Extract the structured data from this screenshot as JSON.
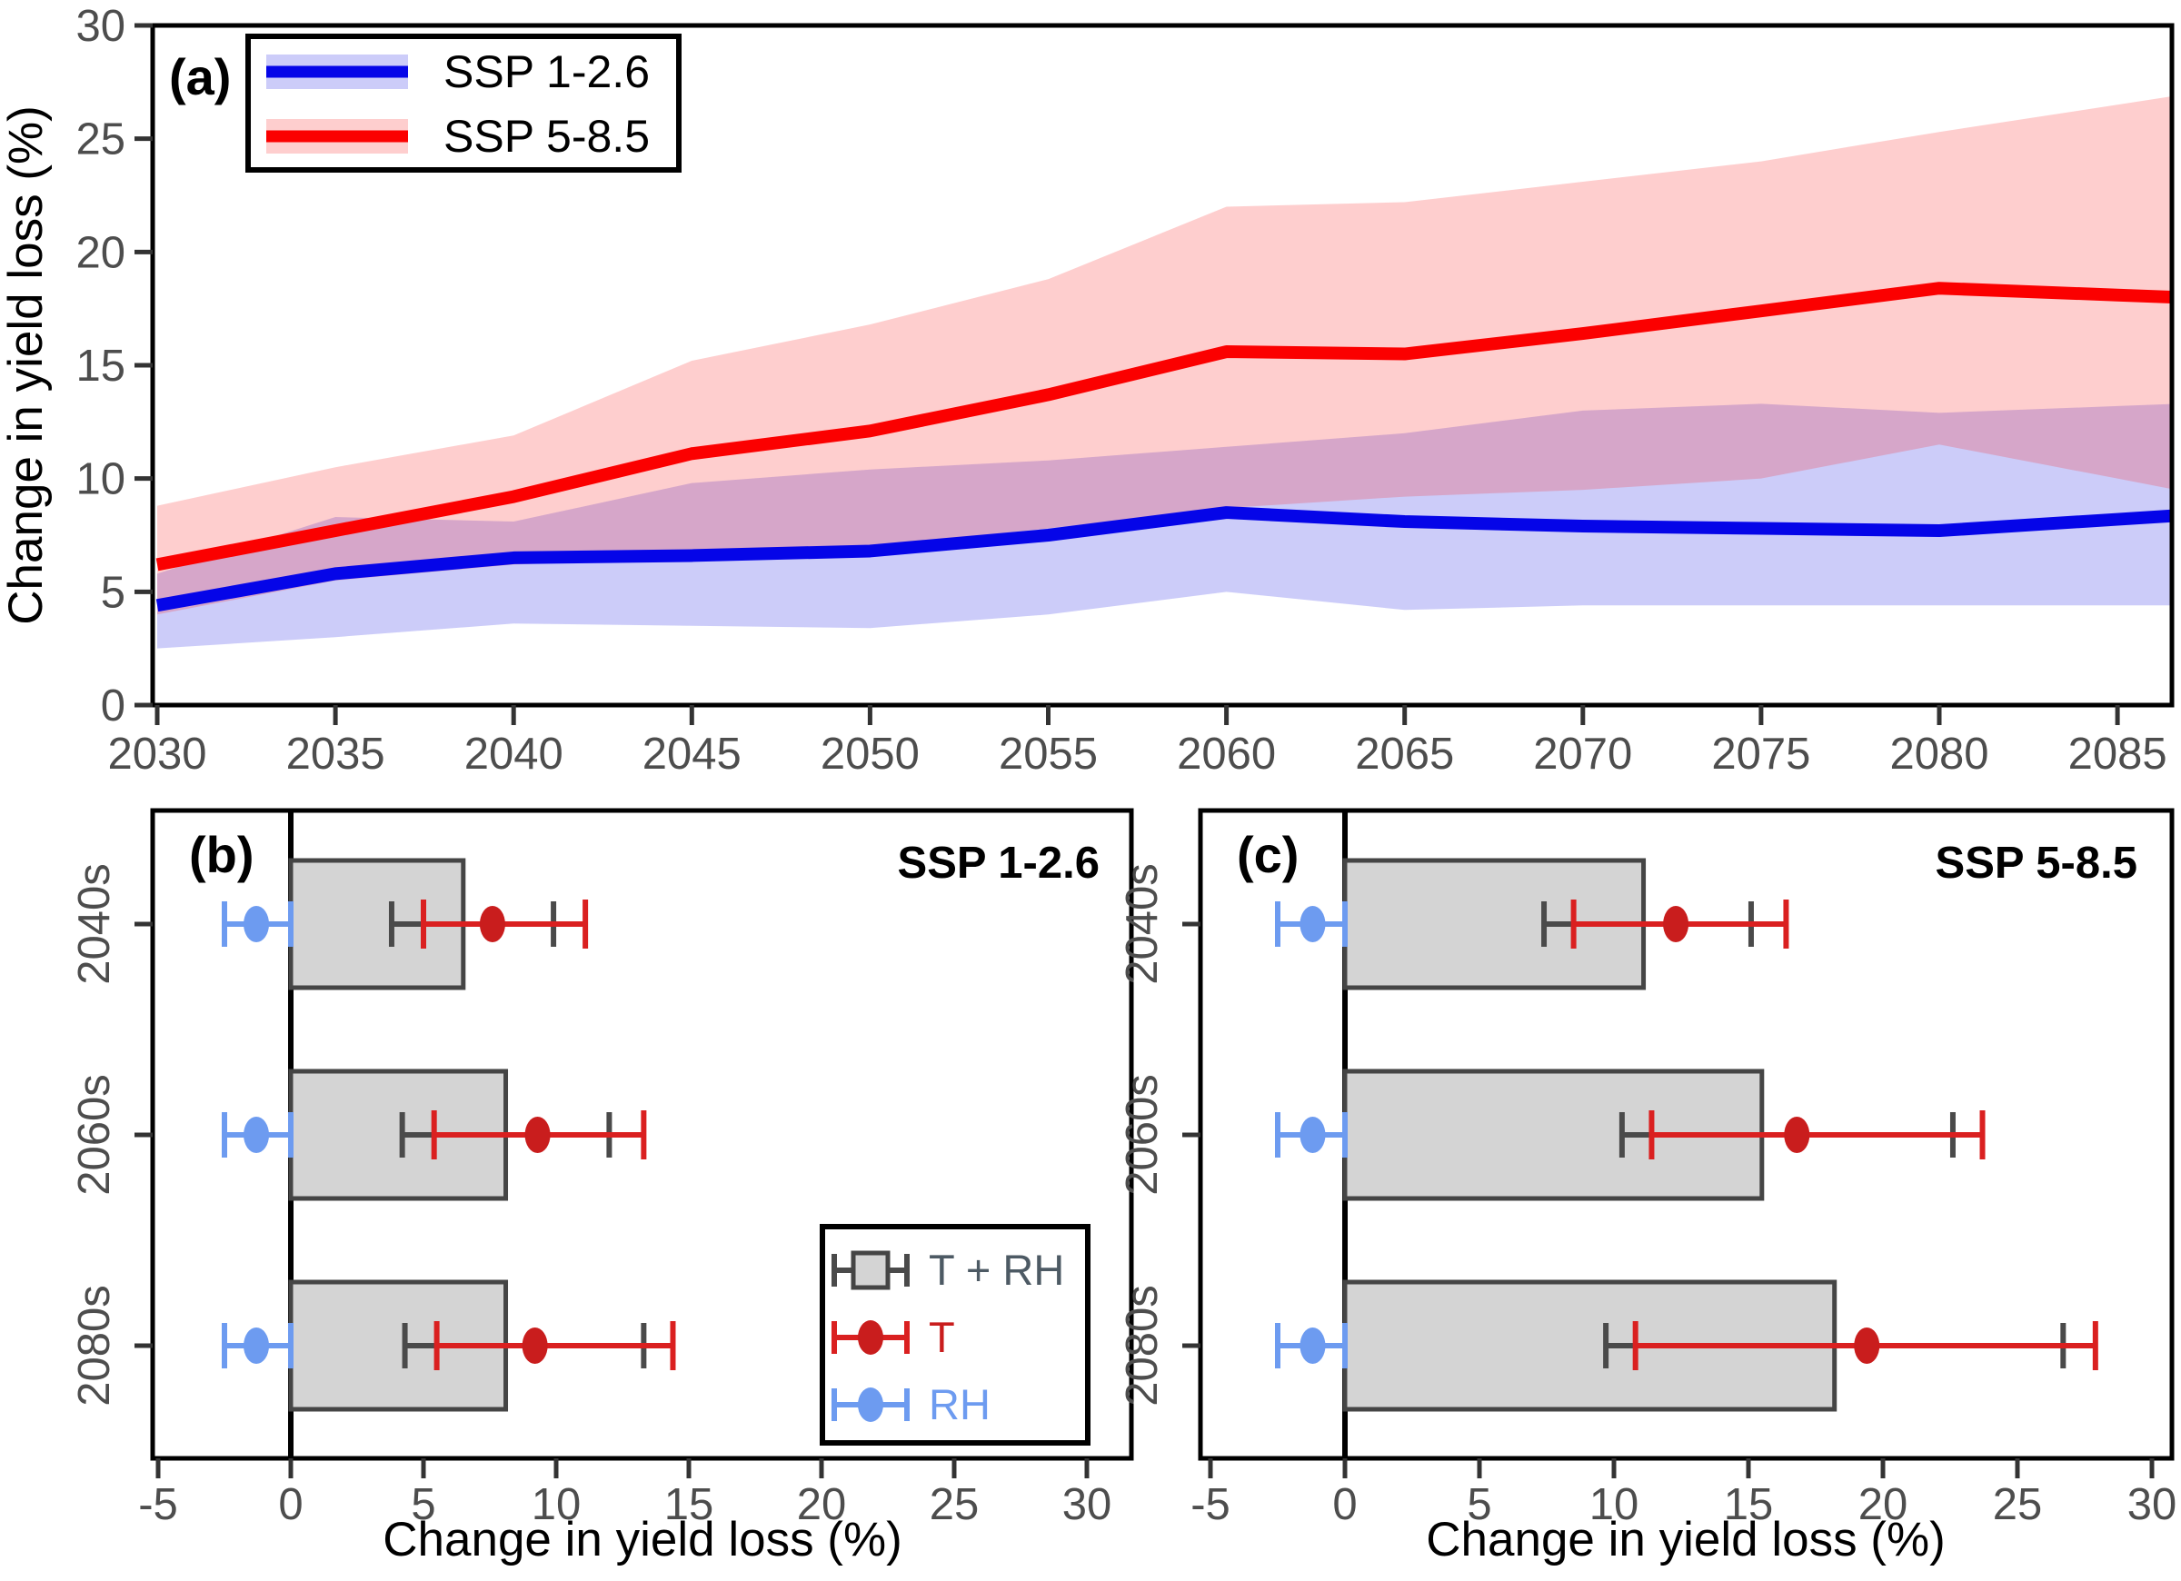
{
  "figure": {
    "y_axis_title_a": "Change in yield loss (%)",
    "x_axis_title_bc": "Change in yield loss (%)"
  },
  "panel_a": {
    "tag": "(a)",
    "legend": [
      {
        "label": "SSP 1-2.6",
        "line_color": "#0505e8",
        "band_color": "rgba(85,85,235,0.30)"
      },
      {
        "label": "SSP 5-8.5",
        "line_color": "#fb0000",
        "band_color": "rgba(252,30,30,0.22)"
      }
    ]
  },
  "panel_b": {
    "tag": "(b)",
    "title": "SSP 1-2.6",
    "legend": [
      {
        "label": "T + RH",
        "color": "#4d5a64",
        "glyph": "gray-square-errorbar"
      },
      {
        "label": "T",
        "color": "#c91d1d",
        "glyph": "red-dot-errorbar"
      },
      {
        "label": "RH",
        "color": "#6d9bf0",
        "glyph": "blue-dot-errorbar"
      }
    ]
  },
  "panel_c": {
    "tag": "(c)",
    "title": "SSP 5-8.5"
  },
  "chart_data": [
    {
      "id": "a",
      "type": "line",
      "title": "",
      "xlabel": "",
      "ylabel": "Change in yield loss (%)",
      "xlim": [
        2030,
        2085
      ],
      "ylim": [
        0,
        30
      ],
      "x_ticks": [
        2030,
        2035,
        2040,
        2045,
        2050,
        2055,
        2060,
        2065,
        2070,
        2075,
        2080,
        2085
      ],
      "y_ticks": [
        0,
        5,
        10,
        15,
        20,
        25,
        30
      ],
      "x": [
        2030,
        2035,
        2040,
        2045,
        2050,
        2055,
        2060,
        2065,
        2070,
        2075,
        2080,
        2085
      ],
      "series": [
        {
          "name": "SSP 1-2.6",
          "values": [
            4.4,
            5.8,
            6.5,
            6.6,
            6.8,
            7.5,
            8.5,
            8.1,
            7.9,
            7.8,
            7.7,
            8.2
          ],
          "band_lower": [
            2.5,
            3.0,
            3.6,
            3.5,
            3.4,
            4.0,
            5.0,
            4.2,
            4.4,
            4.4,
            4.4,
            4.4
          ],
          "band_upper": [
            5.8,
            8.3,
            8.1,
            9.8,
            10.4,
            10.8,
            11.4,
            12.0,
            13.0,
            13.3,
            12.9,
            13.2
          ]
        },
        {
          "name": "SSP 5-8.5",
          "values": [
            6.2,
            7.7,
            9.2,
            11.1,
            12.1,
            13.7,
            15.6,
            15.5,
            16.4,
            17.4,
            18.4,
            18.1
          ],
          "band_lower": [
            4.0,
            5.5,
            6.2,
            6.5,
            7.0,
            7.8,
            8.7,
            9.2,
            9.5,
            10.0,
            11.5,
            10.0
          ],
          "band_upper": [
            8.8,
            10.5,
            11.9,
            15.2,
            16.8,
            18.8,
            22.0,
            22.2,
            23.1,
            24.0,
            25.3,
            26.5
          ]
        }
      ],
      "legend_position": "top-left",
      "grid": false
    },
    {
      "id": "b",
      "type": "bar",
      "title": "SSP 1-2.6",
      "xlabel": "Change in yield loss (%)",
      "xlim": [
        -5,
        30
      ],
      "x_ticks": [
        -5,
        0,
        5,
        10,
        15,
        20,
        25,
        30
      ],
      "categories": [
        "2040s",
        "2060s",
        "2080s"
      ],
      "bar_values": [
        6.5,
        8.1,
        8.1
      ],
      "trh_whiskers": [
        [
          3.8,
          9.9
        ],
        [
          4.2,
          12.0
        ],
        [
          4.3,
          13.3
        ]
      ],
      "t_dots": [
        7.6,
        9.3,
        9.2
      ],
      "t_whiskers": [
        [
          5.0,
          11.1
        ],
        [
          5.4,
          13.3
        ],
        [
          5.5,
          14.4
        ]
      ],
      "rh_dots": [
        -1.3,
        -1.3,
        -1.3
      ],
      "rh_whiskers": [
        [
          -2.5,
          0.0
        ],
        [
          -2.5,
          0.0
        ],
        [
          -2.5,
          0.0
        ]
      ],
      "legend_position": "bottom-right",
      "grid": false
    },
    {
      "id": "c",
      "type": "bar",
      "title": "SSP 5-8.5",
      "xlabel": "Change in yield loss (%)",
      "xlim": [
        -5,
        30
      ],
      "x_ticks": [
        -5,
        0,
        5,
        10,
        15,
        20,
        25,
        30
      ],
      "categories": [
        "2040s",
        "2060s",
        "2080s"
      ],
      "bar_values": [
        11.1,
        15.5,
        18.2
      ],
      "trh_whiskers": [
        [
          7.4,
          15.1
        ],
        [
          10.3,
          22.6
        ],
        [
          9.7,
          26.7
        ]
      ],
      "t_dots": [
        12.3,
        16.8,
        19.4
      ],
      "t_whiskers": [
        [
          8.5,
          16.4
        ],
        [
          11.4,
          23.7
        ],
        [
          10.8,
          27.9
        ]
      ],
      "rh_dots": [
        -1.2,
        -1.2,
        -1.2
      ],
      "rh_whiskers": [
        [
          -2.5,
          0.0
        ],
        [
          -2.5,
          0.0
        ],
        [
          -2.5,
          0.0
        ]
      ],
      "grid": false
    }
  ],
  "colors": {
    "blue_line": "#0505e8",
    "blue_band": "rgba(85,85,235,0.30)",
    "red_line": "#fb0000",
    "red_band": "rgba(252,30,30,0.22)",
    "bar_fill": "#d4d4d4",
    "bar_stroke": "#454545",
    "trh_whisker": "#4a4a4a",
    "t_color": "#c91d1d",
    "t_line": "#da2020",
    "rh_color": "#6d9bf0",
    "tick_text": "#4d4d4d",
    "axis_black": "#000000",
    "tick_mark": "#333333"
  }
}
